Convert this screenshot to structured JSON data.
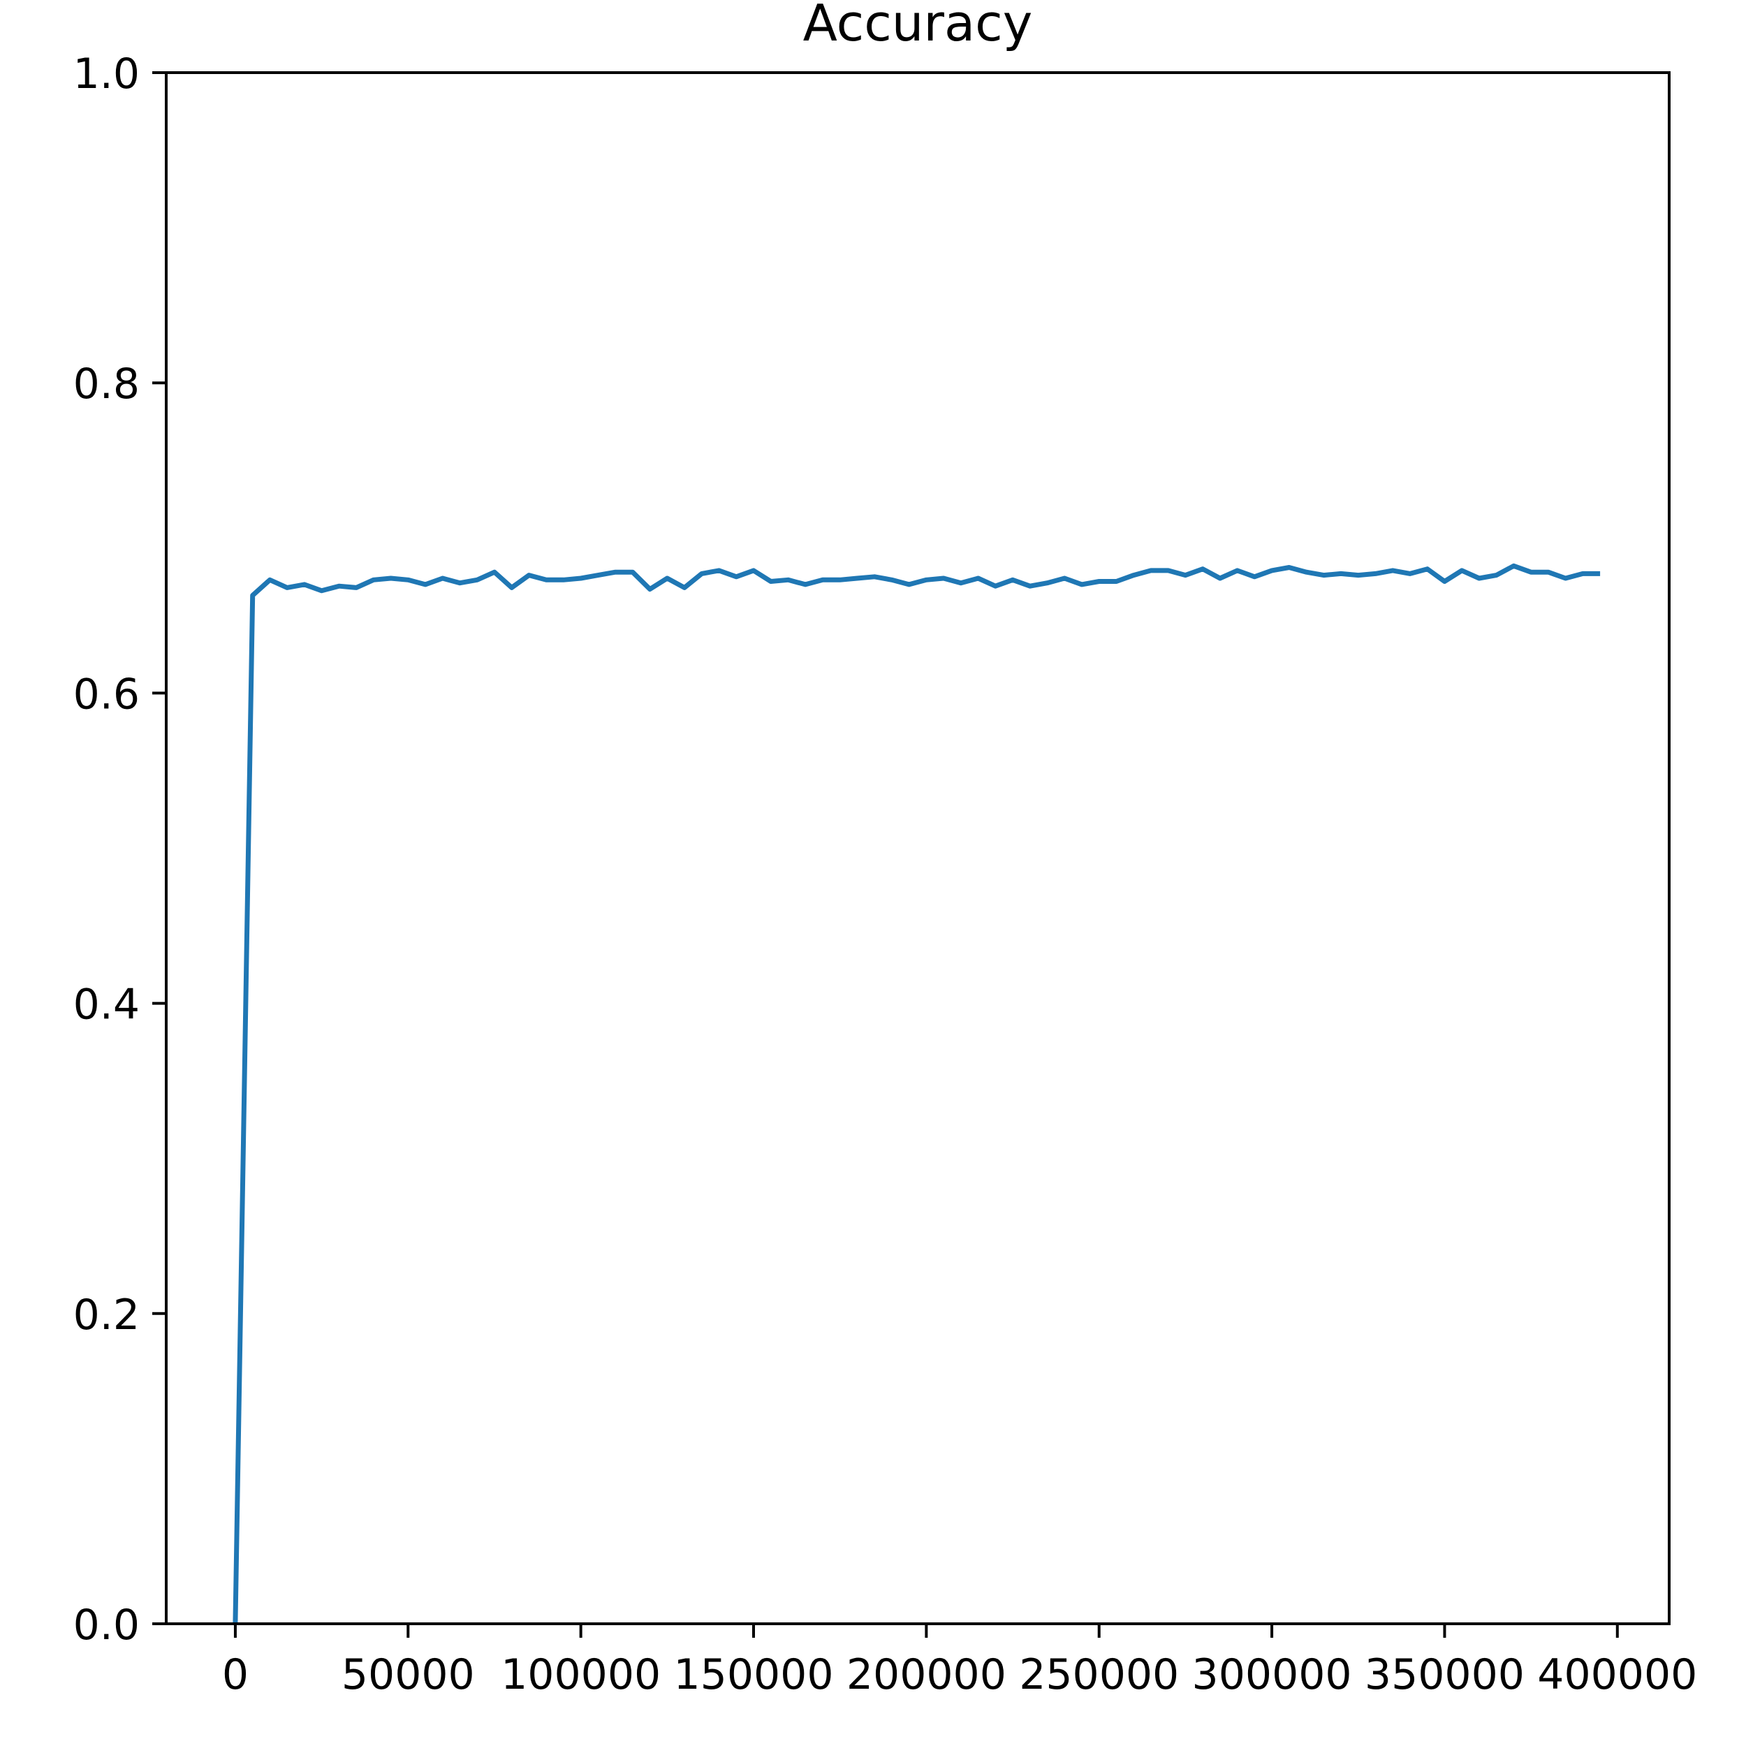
{
  "chart_data": {
    "type": "line",
    "title": "Accuracy",
    "xlabel": "",
    "ylabel": "",
    "xlim": [
      -20000,
      415000
    ],
    "ylim": [
      0,
      1
    ],
    "x_ticks": [
      0,
      50000,
      100000,
      150000,
      200000,
      250000,
      300000,
      350000,
      400000
    ],
    "x_tick_labels": [
      "0",
      "50000",
      "100000",
      "150000",
      "200000",
      "250000",
      "300000",
      "350000",
      "400000"
    ],
    "y_ticks": [
      0,
      0.2,
      0.4,
      0.6,
      0.8,
      1.0
    ],
    "y_tick_labels": [
      "0.0",
      "0.2",
      "0.4",
      "0.6",
      "0.8",
      "1.0"
    ],
    "grid": false,
    "line_color": "#1f77b4",
    "series": [
      {
        "x": [
          0,
          5000,
          10000,
          15000,
          20000,
          25000,
          30000,
          35000,
          40000,
          45000,
          50000,
          55000,
          60000,
          65000,
          70000,
          75000,
          80000,
          85000,
          90000,
          95000,
          100000,
          105000,
          110000,
          115000,
          120000,
          125000,
          130000,
          135000,
          140000,
          145000,
          150000,
          155000,
          160000,
          165000,
          170000,
          175000,
          180000,
          185000,
          190000,
          195000,
          200000,
          205000,
          210000,
          215000,
          220000,
          225000,
          230000,
          235000,
          240000,
          245000,
          250000,
          255000,
          260000,
          265000,
          270000,
          275000,
          280000,
          285000,
          290000,
          295000,
          300000,
          305000,
          310000,
          315000,
          320000,
          325000,
          330000,
          335000,
          340000,
          345000,
          350000,
          355000,
          360000,
          365000,
          370000,
          375000,
          380000,
          385000,
          390000,
          395000
        ],
        "values": [
          0.0,
          0.663,
          0.673,
          0.668,
          0.67,
          0.666,
          0.669,
          0.668,
          0.673,
          0.674,
          0.673,
          0.67,
          0.674,
          0.671,
          0.673,
          0.678,
          0.668,
          0.676,
          0.673,
          0.673,
          0.674,
          0.676,
          0.678,
          0.678,
          0.667,
          0.674,
          0.668,
          0.677,
          0.679,
          0.675,
          0.679,
          0.672,
          0.673,
          0.67,
          0.673,
          0.673,
          0.674,
          0.675,
          0.673,
          0.67,
          0.673,
          0.674,
          0.671,
          0.674,
          0.669,
          0.673,
          0.669,
          0.671,
          0.674,
          0.67,
          0.672,
          0.672,
          0.676,
          0.679,
          0.679,
          0.676,
          0.68,
          0.674,
          0.679,
          0.675,
          0.679,
          0.681,
          0.678,
          0.676,
          0.677,
          0.676,
          0.677,
          0.679,
          0.677,
          0.68,
          0.672,
          0.679,
          0.674,
          0.676,
          0.682,
          0.678,
          0.678,
          0.674,
          0.677,
          0.677
        ]
      }
    ]
  }
}
